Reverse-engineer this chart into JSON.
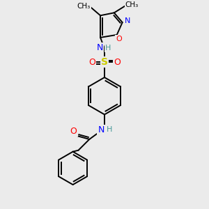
{
  "bg_color": "#ebebeb",
  "atom_colors": {
    "C": "#000000",
    "H": "#4a9a9a",
    "N": "#0000ff",
    "O": "#ff0000",
    "S": "#cccc00"
  },
  "bond_color": "#000000",
  "figsize": [
    3.0,
    3.0
  ],
  "dpi": 100,
  "lw": 1.4
}
